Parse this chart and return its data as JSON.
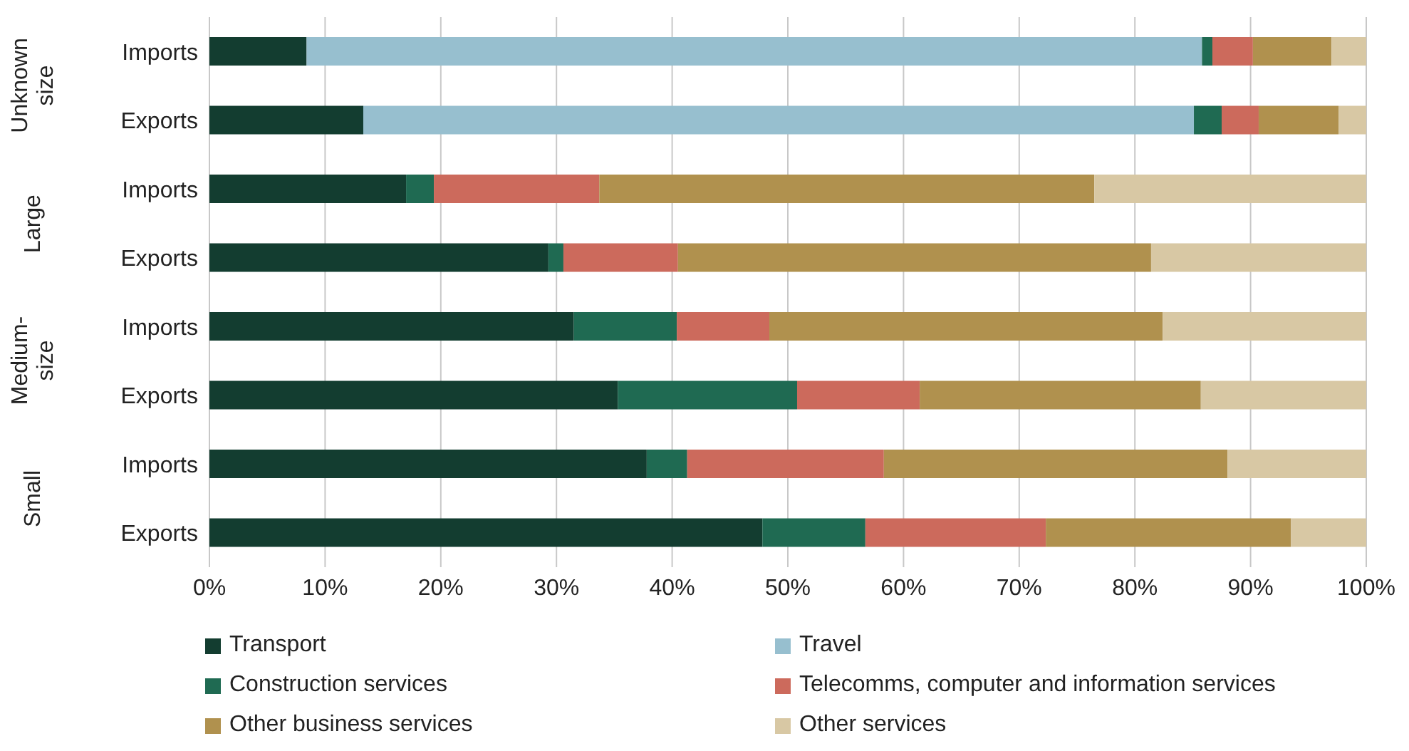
{
  "chart_data": {
    "type": "bar",
    "orientation": "horizontal",
    "stacked": true,
    "categories": [
      "Imports",
      "Exports",
      "Imports",
      "Exports",
      "Imports",
      "Exports",
      "Imports",
      "Exports"
    ],
    "annotations": [
      "Unknown size",
      "Large",
      "Medium-size",
      "Small"
    ],
    "series": [
      {
        "name": "Transport",
        "color": "#133d30",
        "values": [
          8.4,
          13.3,
          17.0,
          29.3,
          31.5,
          35.3,
          37.8,
          47.8
        ]
      },
      {
        "name": "Travel",
        "color": "#97bfcf",
        "values": [
          77.4,
          71.8,
          0,
          0,
          0,
          0,
          0,
          0
        ]
      },
      {
        "name": "Construction services",
        "color": "#1f6a52",
        "values": [
          0.9,
          2.4,
          2.4,
          1.3,
          8.9,
          15.5,
          3.5,
          8.9
        ]
      },
      {
        "name": "Telecomms, computer and information services",
        "color": "#cc6a5c",
        "values": [
          3.5,
          3.2,
          14.3,
          9.9,
          8.0,
          10.6,
          17.0,
          15.6
        ]
      },
      {
        "name": "Other business services",
        "color": "#b0914e",
        "values": [
          6.8,
          6.9,
          42.8,
          40.9,
          34.0,
          24.3,
          29.7,
          21.2
        ]
      },
      {
        "name": "Other services",
        "color": "#d8c8a4",
        "values": [
          3.0,
          2.4,
          23.5,
          18.6,
          17.6,
          14.3,
          12.0,
          6.5
        ]
      }
    ],
    "xlim": [
      0,
      100
    ],
    "xticks": [
      {
        "value": 0,
        "label": "0%"
      },
      {
        "value": 10,
        "label": "10%"
      },
      {
        "value": 20,
        "label": "20%"
      },
      {
        "value": 30,
        "label": "30%"
      },
      {
        "value": 40,
        "label": "40%"
      },
      {
        "value": 50,
        "label": "50%"
      },
      {
        "value": 60,
        "label": "60%"
      },
      {
        "value": 70,
        "label": "70%"
      },
      {
        "value": 80,
        "label": "80%"
      },
      {
        "value": 90,
        "label": "90%"
      },
      {
        "value": 100,
        "label": "100%"
      }
    ],
    "grid": "x",
    "legend": "bottom"
  }
}
